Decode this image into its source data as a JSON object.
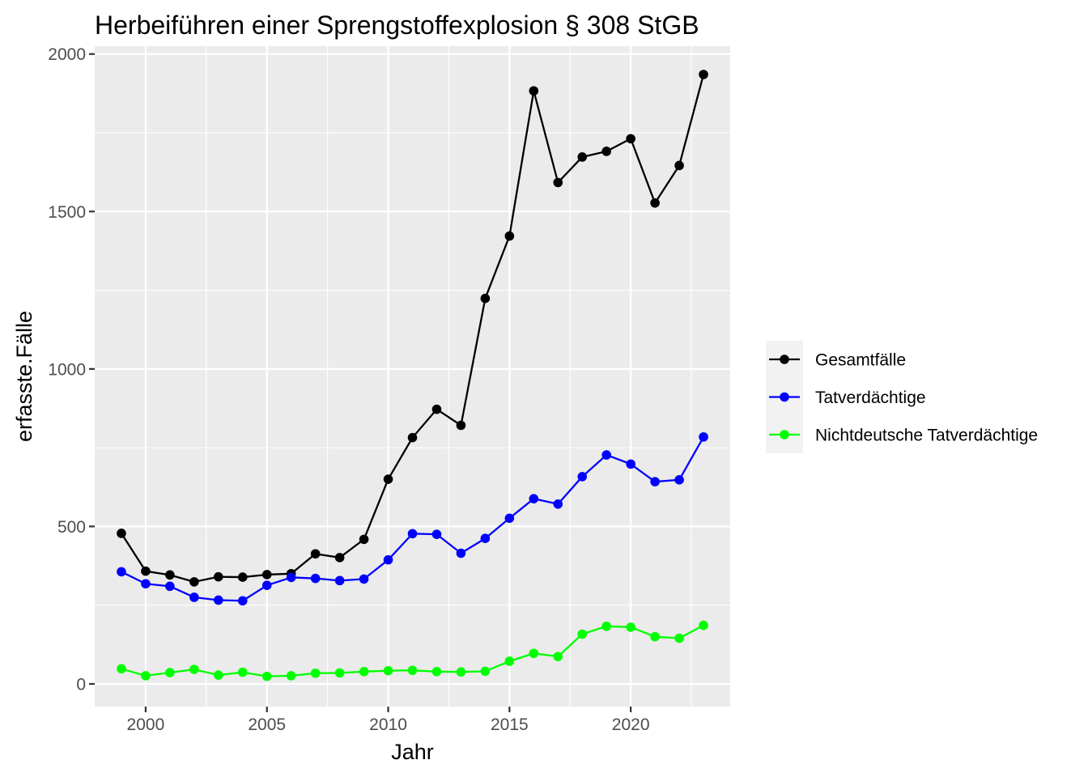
{
  "chart_data": {
    "type": "line",
    "title": "Herbeiführen einer Sprengstoffexplosion § 308 StGB",
    "xlabel": "Jahr",
    "ylabel": "erfasste.Fälle",
    "xlim": [
      1997.9,
      2024.1
    ],
    "ylim": [
      -72,
      2025
    ],
    "x_ticks": [
      "2000",
      "2005",
      "2010",
      "2015",
      "2020"
    ],
    "y_ticks": [
      "0",
      "500",
      "1000",
      "1500",
      "2000"
    ],
    "grid": true,
    "legend_position": "right",
    "x": [
      1999,
      2000,
      2001,
      2002,
      2003,
      2004,
      2005,
      2006,
      2007,
      2008,
      2009,
      2010,
      2011,
      2012,
      2013,
      2014,
      2015,
      2016,
      2017,
      2018,
      2019,
      2020,
      2021,
      2022,
      2023
    ],
    "series": [
      {
        "name": "Gesamtfälle",
        "color": "#000000",
        "values": [
          478,
          358,
          346,
          324,
          340,
          339,
          347,
          350,
          413,
          401,
          459,
          650,
          782,
          872,
          821,
          1224,
          1422,
          1883,
          1592,
          1673,
          1691,
          1731,
          1527,
          1646,
          1935
        ]
      },
      {
        "name": "Tatverdächtige",
        "color": "#0000FF",
        "values": [
          356,
          318,
          310,
          275,
          266,
          264,
          313,
          338,
          335,
          328,
          333,
          394,
          477,
          475,
          415,
          462,
          526,
          588,
          571,
          658,
          727,
          698,
          642,
          648,
          784
        ]
      },
      {
        "name": "Nichtdeutsche Tatverdächtige",
        "color": "#00FF00",
        "values": [
          48,
          26,
          36,
          46,
          28,
          37,
          24,
          26,
          34,
          35,
          39,
          42,
          43,
          39,
          38,
          40,
          72,
          97,
          87,
          158,
          183,
          180,
          150,
          145,
          186
        ]
      }
    ]
  },
  "style": {
    "panel_background": "#EBEBEB",
    "grid_color": "#FFFFFF",
    "tick_color": "#333333"
  }
}
